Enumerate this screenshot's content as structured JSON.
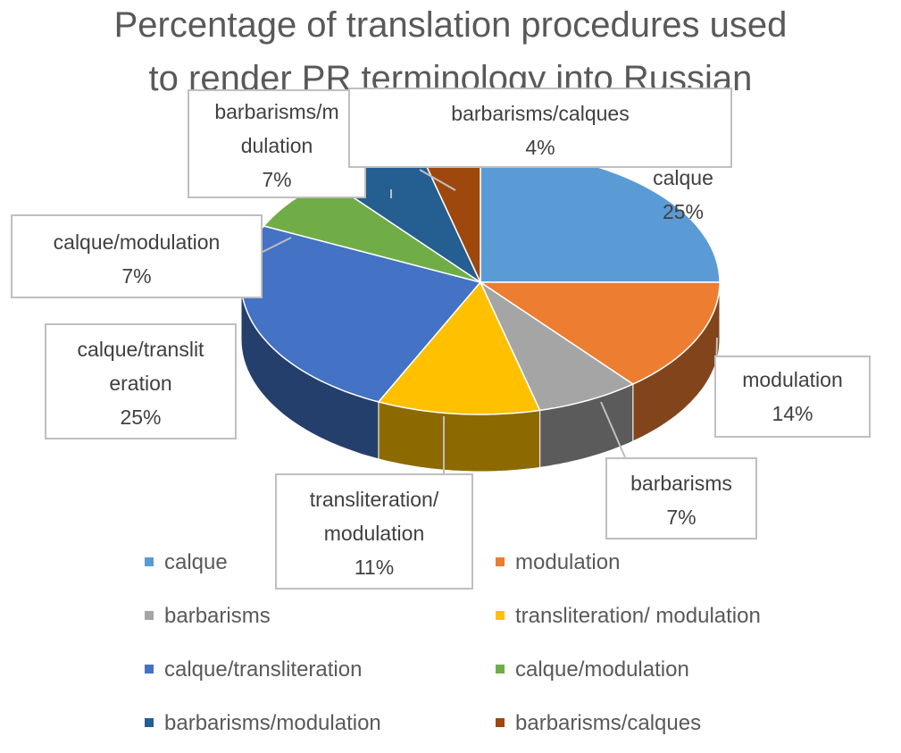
{
  "chart_data": {
    "type": "pie",
    "title_line1": "Percentage of translation procedures used",
    "title_line2": "to render PR terminology into Russian",
    "slices": [
      {
        "name": "calque",
        "value": 25,
        "label": "25%",
        "color": "#5b9bd5"
      },
      {
        "name": "modulation",
        "value": 14,
        "label": "14%",
        "color": "#ed7d31"
      },
      {
        "name": "barbarisms",
        "value": 7,
        "label": "7%",
        "color": "#a5a5a5"
      },
      {
        "name": "transliteration/ modulation",
        "value": 11,
        "label": "11%",
        "color": "#ffc000"
      },
      {
        "name": "calque/transliteration",
        "value": 25,
        "label": "25%",
        "color": "#4472c4"
      },
      {
        "name": "calque/modulation",
        "value": 7,
        "label": "7%",
        "color": "#70ad47"
      },
      {
        "name": "barbarisms/modulation",
        "value": 7,
        "label": "7%",
        "color": "#255e91"
      },
      {
        "name": "barbarisms/calques",
        "value": 4,
        "label": "4%",
        "color": "#9e480e"
      }
    ],
    "data_labels": {
      "calque": [
        "calque",
        "25%"
      ],
      "modulation": [
        "modulation",
        "14%"
      ],
      "barbarisms": [
        "barbarisms",
        "7%"
      ],
      "translit_mod": [
        "transliteration/",
        "modulation",
        "11%"
      ],
      "calque_translit": [
        "calque/translit",
        "eration",
        "25%"
      ],
      "calque_mod": [
        "calque/modulation",
        "7%"
      ],
      "barb_mod": [
        "barbarisms/m",
        "dulation",
        "7%"
      ],
      "barb_calques": [
        "barbarisms/calques",
        "4%"
      ]
    },
    "legend": [
      {
        "name": "calque",
        "color": "#5b9bd5"
      },
      {
        "name": "modulation",
        "color": "#ed7d31"
      },
      {
        "name": "barbarisms",
        "color": "#a5a5a5"
      },
      {
        "name": "transliteration/ modulation",
        "color": "#ffc000"
      },
      {
        "name": "calque/transliteration",
        "color": "#4472c4"
      },
      {
        "name": "calque/modulation",
        "color": "#70ad47"
      },
      {
        "name": "barbarisms/modulation",
        "color": "#255e91"
      },
      {
        "name": "barbarisms/calques",
        "color": "#9e480e"
      }
    ],
    "legend_placement": "bottom",
    "style": "3d-pie"
  }
}
